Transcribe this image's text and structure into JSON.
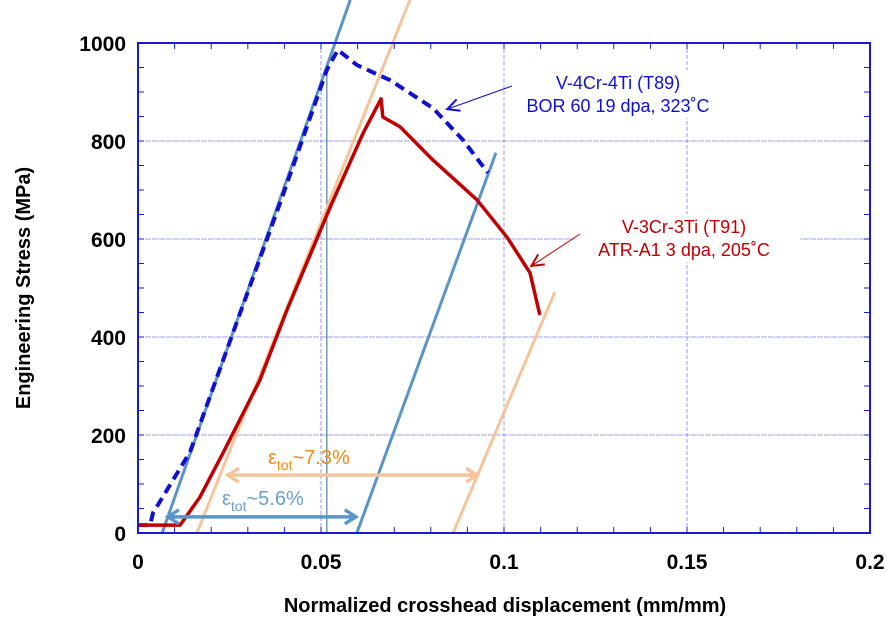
{
  "chart_data": {
    "type": "line",
    "title": "",
    "xlabel": "Normalized crosshead displacement (mm/mm)",
    "ylabel": "Engineering Stress (MPa)",
    "xlim": [
      0,
      0.2
    ],
    "ylim": [
      0,
      1000
    ],
    "xticks": [
      "0",
      "0.05",
      "0.1",
      "0.15",
      "0.2"
    ],
    "xtick_values": [
      0,
      0.05,
      0.1,
      0.15,
      0.2
    ],
    "yticks": [
      "0",
      "200",
      "400",
      "600",
      "800",
      "1000"
    ],
    "ytick_values": [
      0,
      200,
      400,
      600,
      800,
      1000
    ],
    "grid": true,
    "series": [
      {
        "name": "V-4Cr-4Ti (T89)",
        "color": "#1010d0",
        "style": "dashed",
        "x": [
          0,
          0.0033,
          0.0041,
          0.0142,
          0.0279,
          0.0388,
          0.0516,
          0.0546,
          0.0598,
          0.0689,
          0.0806,
          0.0888,
          0.0956
        ],
        "y": [
          16,
          16,
          41,
          165,
          449,
          673,
          945,
          986,
          955,
          924,
          867,
          802,
          735
        ]
      },
      {
        "name": "V-3Cr-3Ti (T91)",
        "color": "#c00000",
        "style": "solid",
        "x": [
          0,
          0.0115,
          0.0169,
          0.0232,
          0.0333,
          0.0407,
          0.0525,
          0.0615,
          0.0664,
          0.0669,
          0.0716,
          0.0806,
          0.0926,
          0.1008,
          0.1071,
          0.1098
        ],
        "y": [
          16,
          16,
          73,
          163,
          312,
          455,
          665,
          816,
          886,
          849,
          829,
          761,
          680,
          604,
          531,
          445
        ]
      }
    ],
    "fit_lines": [
      {
        "color": "#5b95c8",
        "x": [
          0.0066,
          0.058
        ],
        "y": [
          0,
          1088
        ]
      },
      {
        "color": "#5b95c8",
        "x": [
          0.0598,
          0.0978
        ],
        "y": [
          0,
          776
        ]
      },
      {
        "color": "#f5c49a",
        "x": [
          0.0161,
          0.0743
        ],
        "y": [
          0,
          1088
        ]
      },
      {
        "color": "#f5c49a",
        "x": [
          0.0861,
          0.1139
        ],
        "y": [
          0,
          492
        ]
      }
    ],
    "vertical_marker": {
      "x": 0.0516,
      "y": [
        0,
        960
      ],
      "color": "#2a6a8a"
    },
    "annotations": [
      {
        "line1": "V-4Cr-4Ti (T89)",
        "line2": "BOR 60 19 dpa, 323˚C",
        "color": "#1010d0",
        "arrow_to": [
          0.0845,
          865
        ]
      },
      {
        "line1": "V-3Cr-3Ti (T91)",
        "line2": "ATR-A1 3 dpa, 205˚C",
        "color": "#c00000",
        "arrow_to": [
          0.1075,
          545
        ]
      }
    ],
    "strain_arrows": [
      {
        "symbol": "ε",
        "sub": "tot",
        "value": "~7.3%",
        "text_color": "#f08a10",
        "arrow_color": "#f5c49a",
        "x": [
          0.0243,
          0.0929
        ],
        "y": 118
      },
      {
        "symbol": "ε",
        "sub": "tot",
        "value": "~5.6%",
        "text_color": "#6a9fd4",
        "arrow_color": "#5b95c8",
        "x": [
          0.0079,
          0.0598
        ],
        "y": 33
      }
    ],
    "frame_color": "#1a1ad0",
    "grid_color": "#8080ee"
  }
}
